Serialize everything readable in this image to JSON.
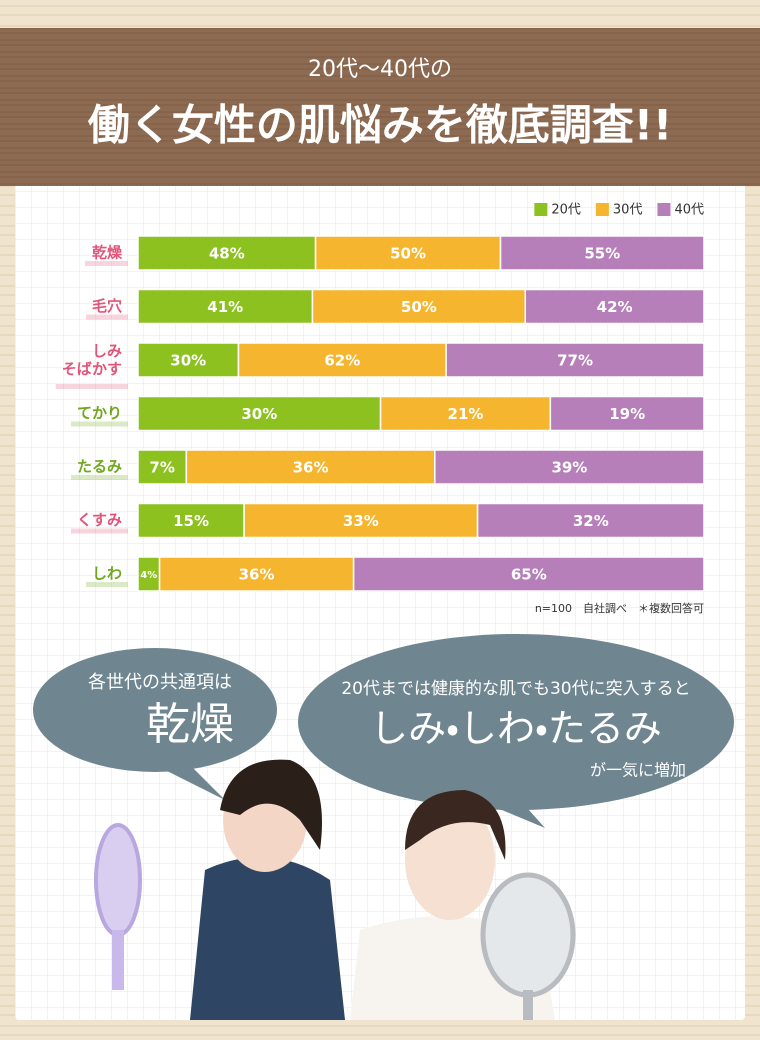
{
  "header": {
    "subtitle": "20代〜40代の",
    "title": "働く女性の肌悩みを徹底調査!!"
  },
  "chart_data": {
    "type": "bar",
    "orientation": "horizontal",
    "stacking": "percent",
    "categories": [
      "乾燥",
      "毛穴",
      "しみ\nそばかす",
      "てかり",
      "たるみ",
      "くすみ",
      "しわ"
    ],
    "category_colors": [
      "#e0557a",
      "#e0557a",
      "#e0557a",
      "#6fa81c",
      "#6fa81c",
      "#e0557a",
      "#6fa81c"
    ],
    "legend": "top-right",
    "series": [
      {
        "name": "20代",
        "color": "#8cc11f",
        "values": [
          48,
          41,
          30,
          30,
          7,
          15,
          4
        ],
        "value_labels": [
          "48%",
          "41%",
          "30%",
          "30%",
          "7%",
          "15%",
          "4%"
        ]
      },
      {
        "name": "30代",
        "color": "#f6b52e",
        "values": [
          50,
          50,
          62,
          21,
          36,
          33,
          36
        ],
        "value_labels": [
          "50%",
          "50%",
          "62%",
          "21%",
          "36%",
          "33%",
          "36%"
        ]
      },
      {
        "name": "40代",
        "color": "#b77fba",
        "values": [
          55,
          42,
          77,
          19,
          39,
          32,
          65
        ],
        "value_labels": [
          "55%",
          "42%",
          "77%",
          "19%",
          "39%",
          "32%",
          "65%"
        ]
      }
    ],
    "note": "n=100　自社調べ　＊複数回答可"
  },
  "bubbles": [
    {
      "lead": "各世代の共通項は",
      "main": "乾燥"
    },
    {
      "lead": "20代までは健康的な肌でも30代に突入すると",
      "main": "しみ・しわ・たるみ",
      "tail": "が一気に増加"
    }
  ]
}
